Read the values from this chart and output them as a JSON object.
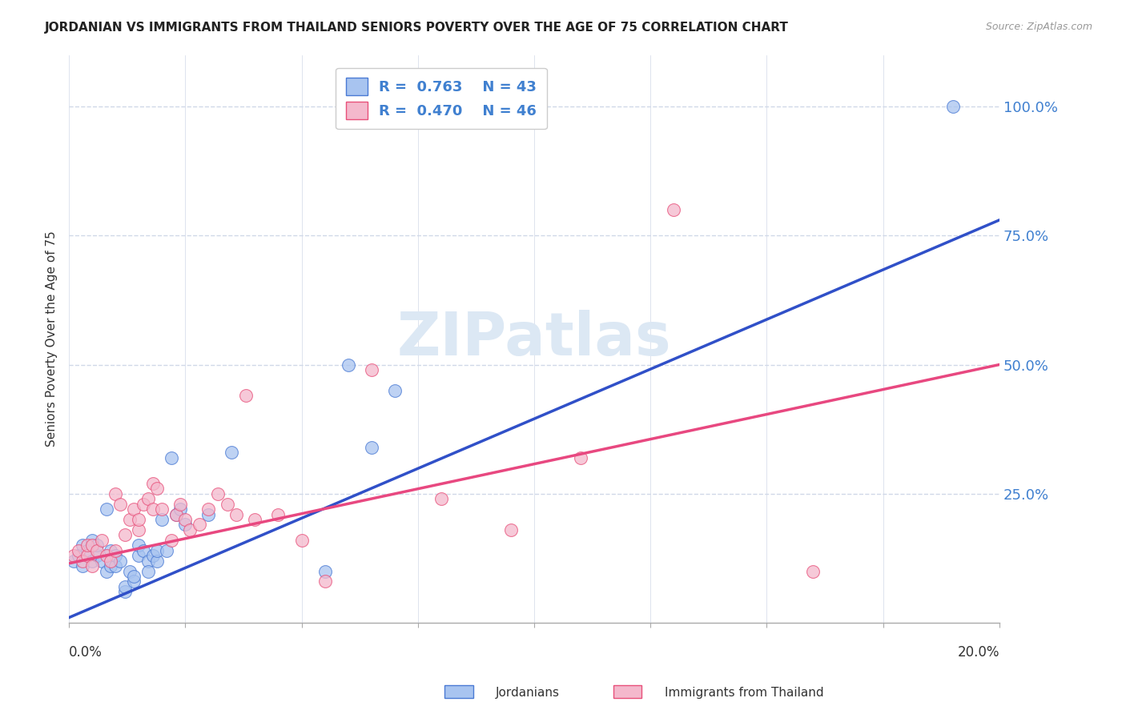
{
  "title": "JORDANIAN VS IMMIGRANTS FROM THAILAND SENIORS POVERTY OVER THE AGE OF 75 CORRELATION CHART",
  "source": "Source: ZipAtlas.com",
  "ylabel": "Seniors Poverty Over the Age of 75",
  "right_ytick_vals": [
    1.0,
    0.75,
    0.5,
    0.25
  ],
  "legend_line1": "R =  0.763    N = 43",
  "legend_line2": "R =  0.470    N = 46",
  "blue_fill_color": "#a8c4f0",
  "pink_fill_color": "#f4b8cc",
  "blue_edge_color": "#4a7ad4",
  "pink_edge_color": "#e8507a",
  "blue_line_color": "#3050c8",
  "pink_line_color": "#e84880",
  "legend_text_color": "#4080d0",
  "watermark_color": "#dce8f4",
  "blue_scatter_x": [
    0.001,
    0.002,
    0.003,
    0.003,
    0.004,
    0.005,
    0.005,
    0.006,
    0.006,
    0.007,
    0.008,
    0.008,
    0.009,
    0.009,
    0.01,
    0.01,
    0.011,
    0.012,
    0.012,
    0.013,
    0.014,
    0.014,
    0.015,
    0.015,
    0.016,
    0.017,
    0.017,
    0.018,
    0.019,
    0.019,
    0.02,
    0.021,
    0.022,
    0.023,
    0.024,
    0.025,
    0.03,
    0.035,
    0.055,
    0.06,
    0.065,
    0.07,
    0.19
  ],
  "blue_scatter_y": [
    0.12,
    0.13,
    0.11,
    0.15,
    0.14,
    0.12,
    0.16,
    0.13,
    0.15,
    0.12,
    0.1,
    0.22,
    0.11,
    0.14,
    0.11,
    0.13,
    0.12,
    0.06,
    0.07,
    0.1,
    0.08,
    0.09,
    0.13,
    0.15,
    0.14,
    0.12,
    0.1,
    0.13,
    0.12,
    0.14,
    0.2,
    0.14,
    0.32,
    0.21,
    0.22,
    0.19,
    0.21,
    0.33,
    0.1,
    0.5,
    0.34,
    0.45,
    1.0
  ],
  "pink_scatter_x": [
    0.001,
    0.002,
    0.003,
    0.004,
    0.004,
    0.005,
    0.005,
    0.006,
    0.007,
    0.008,
    0.009,
    0.01,
    0.01,
    0.011,
    0.012,
    0.013,
    0.014,
    0.015,
    0.015,
    0.016,
    0.017,
    0.018,
    0.018,
    0.019,
    0.02,
    0.022,
    0.023,
    0.024,
    0.025,
    0.026,
    0.028,
    0.03,
    0.032,
    0.034,
    0.036,
    0.038,
    0.04,
    0.045,
    0.05,
    0.055,
    0.065,
    0.08,
    0.095,
    0.11,
    0.13,
    0.16
  ],
  "pink_scatter_y": [
    0.13,
    0.14,
    0.12,
    0.13,
    0.15,
    0.11,
    0.15,
    0.14,
    0.16,
    0.13,
    0.12,
    0.14,
    0.25,
    0.23,
    0.17,
    0.2,
    0.22,
    0.18,
    0.2,
    0.23,
    0.24,
    0.22,
    0.27,
    0.26,
    0.22,
    0.16,
    0.21,
    0.23,
    0.2,
    0.18,
    0.19,
    0.22,
    0.25,
    0.23,
    0.21,
    0.44,
    0.2,
    0.21,
    0.16,
    0.08,
    0.49,
    0.24,
    0.18,
    0.32,
    0.8,
    0.1
  ],
  "blue_line_x": [
    0.0,
    0.2
  ],
  "blue_line_y": [
    0.01,
    0.78
  ],
  "pink_line_x": [
    0.0,
    0.2
  ],
  "pink_line_y": [
    0.115,
    0.5
  ],
  "xlim": [
    0.0,
    0.2
  ],
  "ylim": [
    0.0,
    1.1
  ],
  "grid_color": "#d0d8e8",
  "background_color": "#ffffff",
  "title_fontsize": 11,
  "tick_fontsize": 10
}
